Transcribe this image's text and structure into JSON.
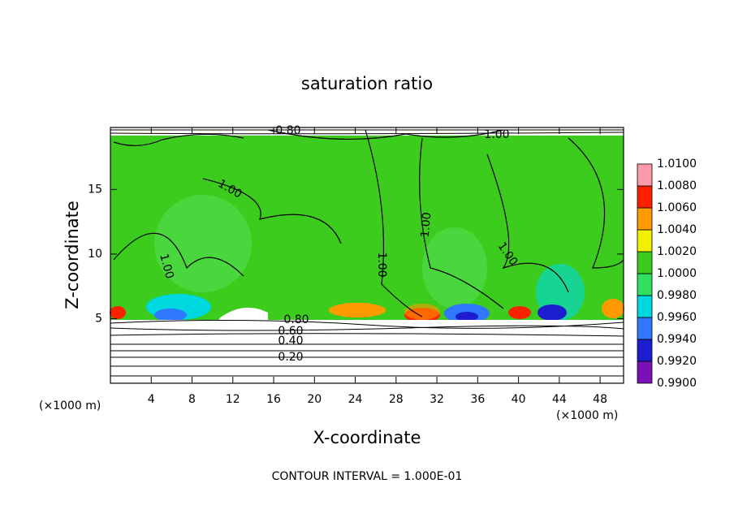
{
  "chart_data": {
    "type": "contour",
    "title": "saturation ratio",
    "xlabel": "X-coordinate",
    "ylabel": "Z-coordinate",
    "x_unit": "(×1000 m)",
    "y_unit": "(×1000 m)",
    "footnote": "CONTOUR INTERVAL = 1.000E-01",
    "xlim": [
      0,
      50.3
    ],
    "ylim": [
      0,
      19.8
    ],
    "xticks": [
      4,
      8,
      12,
      16,
      20,
      24,
      28,
      32,
      36,
      40,
      44,
      48
    ],
    "yticks": [
      5,
      10,
      15
    ],
    "levels": [
      {
        "value": 0.99,
        "label": "0.9900"
      },
      {
        "value": 0.992,
        "label": "0.9920"
      },
      {
        "value": 0.994,
        "label": "0.9940"
      },
      {
        "value": 0.996,
        "label": "0.9960"
      },
      {
        "value": 0.998,
        "label": "0.9980"
      },
      {
        "value": 1.0,
        "label": "1.0000"
      },
      {
        "value": 1.002,
        "label": "1.0020"
      },
      {
        "value": 1.004,
        "label": "1.0040"
      },
      {
        "value": 1.006,
        "label": "1.0060"
      },
      {
        "value": 1.008,
        "label": "1.0080"
      },
      {
        "value": 1.01,
        "label": "1.0100"
      }
    ],
    "colors": [
      "#7a10b8",
      "#1c1cd0",
      "#2f78ff",
      "#00d8e0",
      "#30e060",
      "#3ccc1e",
      "#f0f000",
      "#ff9a00",
      "#ff2000",
      "#ff9aa8"
    ],
    "contour_labels": [
      "0.80",
      "1.00",
      "1.00",
      "1.00",
      "1.00",
      "1.00",
      "1.00",
      "0.80",
      "0.60",
      "0.40",
      "0.20"
    ]
  }
}
